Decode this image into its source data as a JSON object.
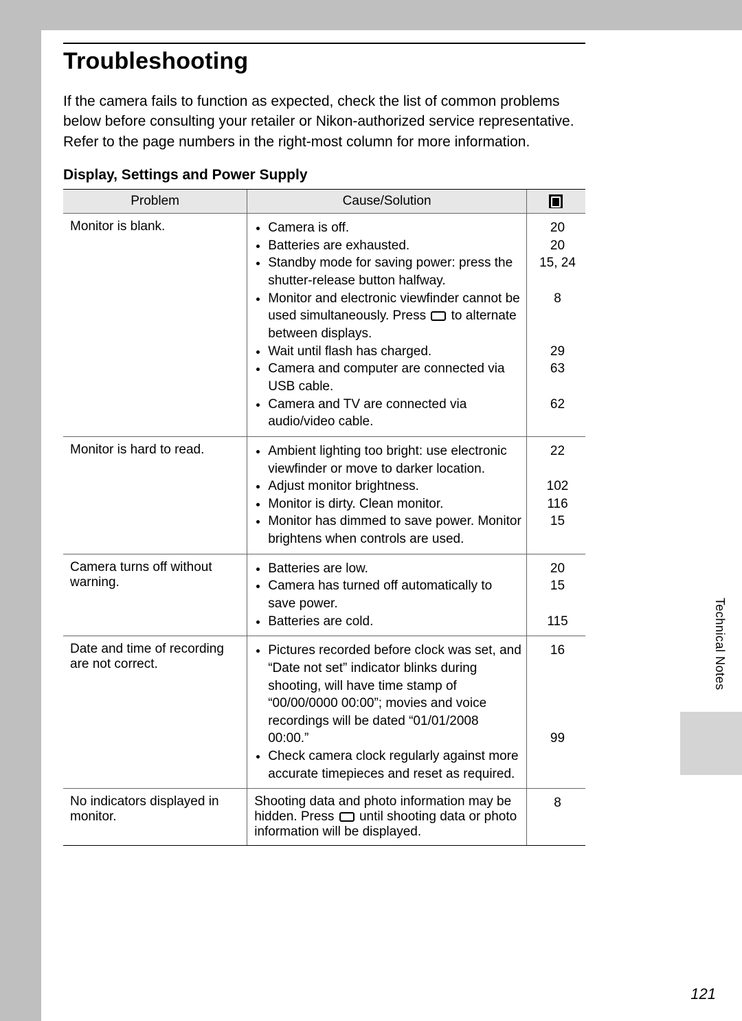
{
  "title": "Troubleshooting",
  "intro": "If the camera fails to function as expected, check the list of common problems below before consulting your retailer or Nikon-authorized service representative. Refer to the page numbers in the right-most column for more information.",
  "section": "Display, Settings and Power Supply",
  "columns": {
    "problem": "Problem",
    "cause": "Cause/Solution"
  },
  "side_label": "Technical Notes",
  "page_number": "121",
  "rows": [
    {
      "problem": "Monitor is blank.",
      "causes": [
        {
          "text": "Camera is off.",
          "page": "20"
        },
        {
          "text": "Batteries are exhausted.",
          "page": "20"
        },
        {
          "text": "Standby mode for saving power: press the shutter-release button halfway.",
          "page": "15, 24"
        },
        {
          "text_pre": "Monitor and electronic viewfinder cannot be used simultaneously. Press ",
          "icon": "display",
          "text_post": " to alternate between displays.",
          "page": "8"
        },
        {
          "text": "Wait until flash has charged.",
          "page": "29"
        },
        {
          "text": "Camera and computer are connected via USB cable.",
          "page": "63"
        },
        {
          "text": "Camera and TV are connected via audio/video cable.",
          "page": "62"
        }
      ]
    },
    {
      "problem": "Monitor is hard to read.",
      "causes": [
        {
          "text": "Ambient lighting too bright: use electronic viewfinder or move to darker location.",
          "page": "22"
        },
        {
          "text": "Adjust monitor brightness.",
          "page": "102"
        },
        {
          "text": "Monitor is dirty. Clean monitor.",
          "page": "116"
        },
        {
          "text": "Monitor has dimmed to save power. Monitor brightens when controls are used.",
          "page": "15"
        }
      ]
    },
    {
      "problem": "Camera turns off without warning.",
      "causes": [
        {
          "text": "Batteries are low.",
          "page": "20"
        },
        {
          "text": "Camera has turned off automatically to save power.",
          "page": "15"
        },
        {
          "text": "Batteries are cold.",
          "page": "115"
        }
      ]
    },
    {
      "problem": "Date and time of recording are not correct.",
      "causes": [
        {
          "text": "Pictures recorded before clock was set, and “Date not set” indicator blinks during shooting, will have time stamp of “00/00/0000 00:00”; movies and voice recordings will be dated “01/01/2008 00:00.”",
          "page": "16"
        },
        {
          "text": "Check camera clock regularly against more accurate timepieces and reset as required.",
          "page": "99"
        }
      ]
    },
    {
      "problem": "No indicators displayed in monitor.",
      "plain_pre": "Shooting data and photo information may be hidden. Press ",
      "plain_icon": "display",
      "plain_post": " until shooting data or photo information will be displayed.",
      "plain_page": "8"
    }
  ]
}
